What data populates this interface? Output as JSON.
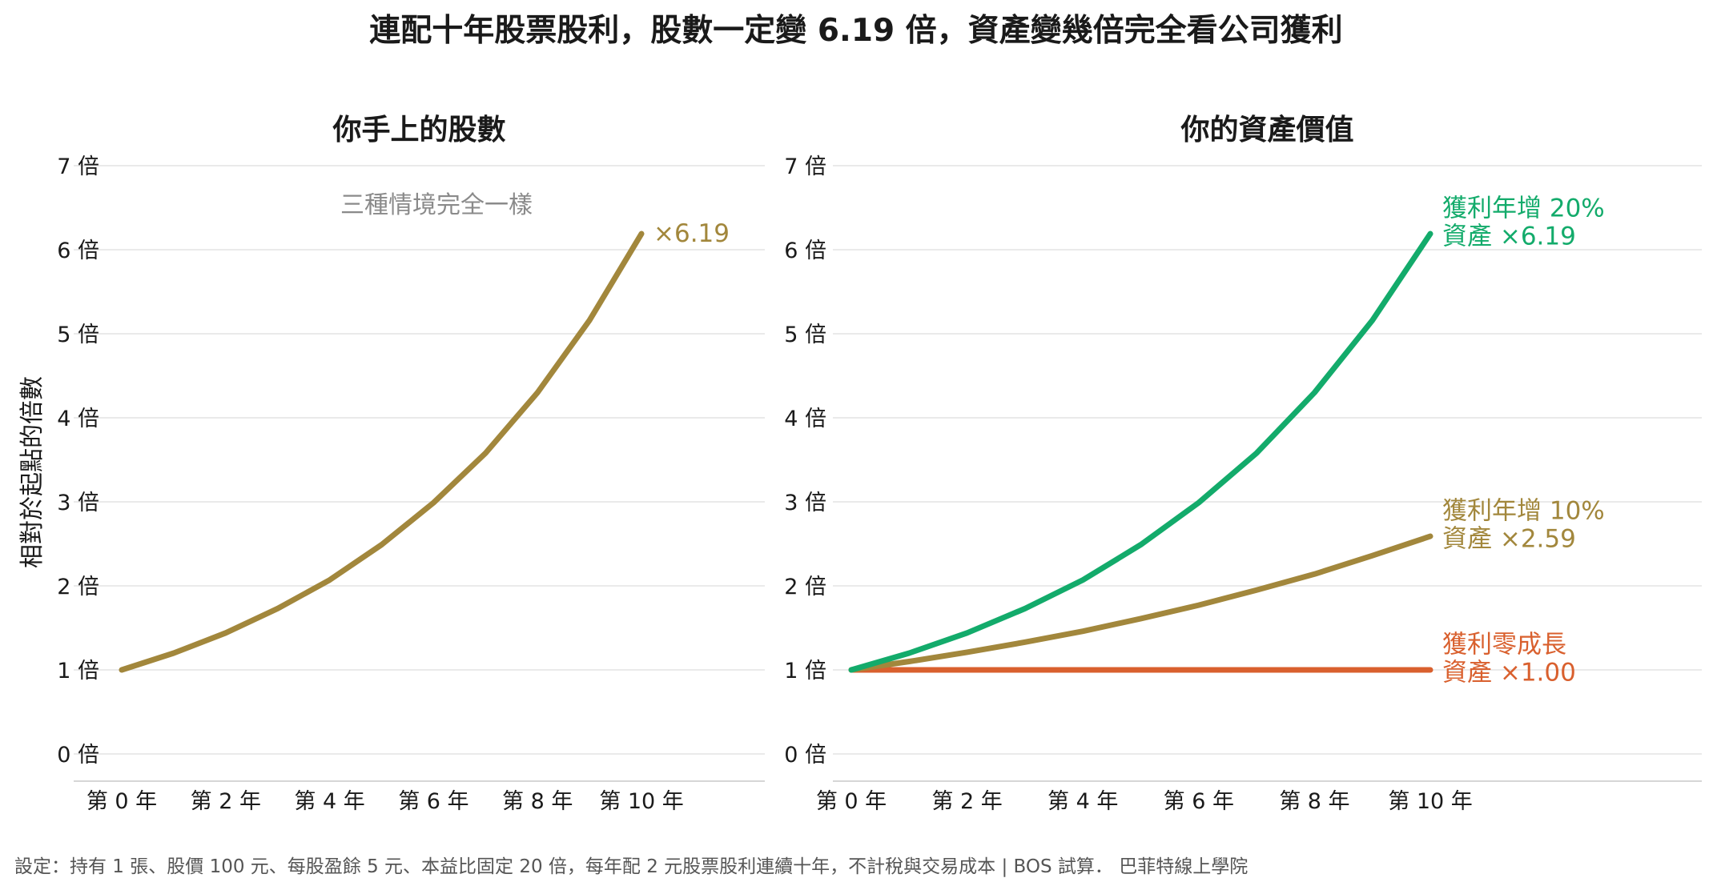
{
  "title": "連配十年股票股利，股數一定變 6.19 倍，資產變幾倍完全看公司獲利",
  "footer": "設定：持有 1 張、股價 100 元、每股盈餘 5 元、本益比固定 20 倍，每年配 2 元股票股利連續十年，不計稅與交易成本 | BOS 試算．   巴菲特線上學院",
  "colors": {
    "gold": "#A2873C",
    "green": "#13AB6B",
    "orange": "#D9602E"
  },
  "chart_data": [
    {
      "type": "line",
      "title": "你手上的股數",
      "ylabel": "相對於起點的倍數",
      "xlabel": "",
      "ylim": [
        0,
        7
      ],
      "xlim": [
        0,
        12
      ],
      "x": [
        0,
        1,
        2,
        3,
        4,
        5,
        6,
        7,
        8,
        9,
        10
      ],
      "xticks": [
        0,
        2,
        4,
        6,
        8,
        10
      ],
      "xtick_labels": [
        "第 0 年",
        "第 2 年",
        "第 4 年",
        "第 6 年",
        "第 8 年",
        "第 10 年"
      ],
      "yticks": [
        0,
        1,
        2,
        3,
        4,
        5,
        6,
        7
      ],
      "ytick_labels": [
        "0 倍",
        "1 倍",
        "2 倍",
        "3 倍",
        "4 倍",
        "5 倍",
        "6 倍",
        "7 倍"
      ],
      "grid": true,
      "legend": "none",
      "annotations": [
        "三種情境完全一樣"
      ],
      "series": [
        {
          "values": [
            1.0,
            1.2,
            1.44,
            1.73,
            2.07,
            2.49,
            2.99,
            3.58,
            4.3,
            5.16,
            6.19
          ],
          "color": "#A2873C",
          "end_label": "×6.19"
        }
      ]
    },
    {
      "type": "line",
      "title": "你的資產價值",
      "ylabel": "",
      "xlabel": "",
      "ylim": [
        0,
        7
      ],
      "xlim": [
        0,
        15
      ],
      "x": [
        0,
        1,
        2,
        3,
        4,
        5,
        6,
        7,
        8,
        9,
        10
      ],
      "xticks": [
        0,
        2,
        4,
        6,
        8,
        10
      ],
      "xtick_labels": [
        "第 0 年",
        "第 2 年",
        "第 4 年",
        "第 6 年",
        "第 8 年",
        "第 10 年"
      ],
      "yticks": [
        0,
        1,
        2,
        3,
        4,
        5,
        6,
        7
      ],
      "ytick_labels": [
        "0 倍",
        "1 倍",
        "2 倍",
        "3 倍",
        "4 倍",
        "5 倍",
        "6 倍",
        "7 倍"
      ],
      "grid": true,
      "legend": "inline-right",
      "series": [
        {
          "values": [
            1.0,
            1.2,
            1.44,
            1.73,
            2.07,
            2.49,
            2.99,
            3.58,
            4.3,
            5.16,
            6.19
          ],
          "color": "#13AB6B",
          "label_lines": [
            "獲利年增 20%",
            "資產 ×6.19"
          ]
        },
        {
          "values": [
            1.0,
            1.1,
            1.21,
            1.33,
            1.46,
            1.61,
            1.77,
            1.95,
            2.14,
            2.36,
            2.59
          ],
          "color": "#A2873C",
          "label_lines": [
            "獲利年增 10%",
            "資產 ×2.59"
          ]
        },
        {
          "values": [
            1.0,
            1.0,
            1.0,
            1.0,
            1.0,
            1.0,
            1.0,
            1.0,
            1.0,
            1.0,
            1.0
          ],
          "color": "#D9602E",
          "label_lines": [
            "獲利零成長",
            "資產 ×1.00"
          ]
        }
      ]
    }
  ]
}
